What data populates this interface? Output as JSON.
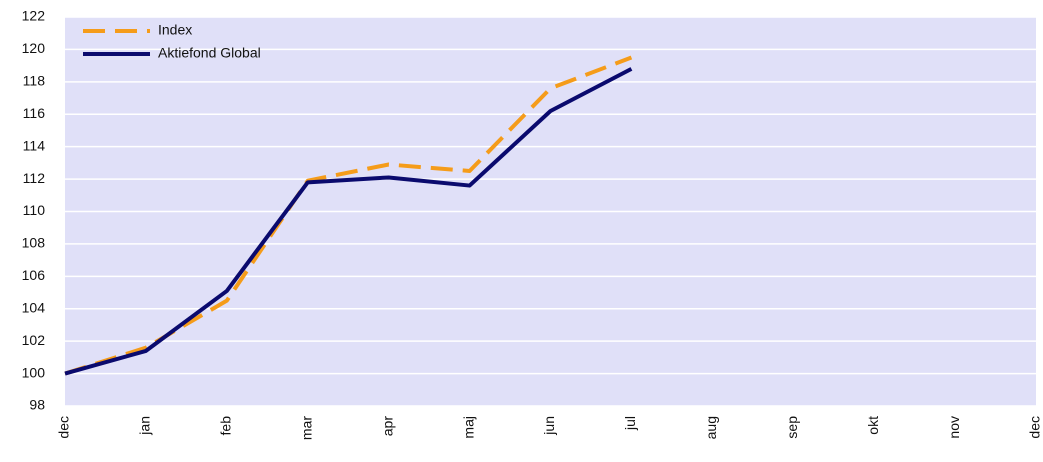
{
  "chart_data": {
    "type": "line",
    "categories": [
      "dec",
      "jan",
      "feb",
      "mar",
      "apr",
      "maj",
      "jun",
      "jul",
      "aug",
      "sep",
      "okt",
      "nov",
      "dec"
    ],
    "series": [
      {
        "name": "Index",
        "color": "#f59c1a",
        "dashed": true,
        "values": [
          100,
          101.6,
          104.5,
          111.9,
          112.9,
          112.5,
          117.6,
          119.5,
          null,
          null,
          null,
          null,
          null
        ]
      },
      {
        "name": "Aktiefond Global",
        "color": "#0a0a6e",
        "dashed": false,
        "values": [
          100,
          101.4,
          105.1,
          111.8,
          112.1,
          111.6,
          116.2,
          118.8,
          null,
          null,
          null,
          null,
          null
        ]
      }
    ],
    "ylim": [
      98,
      122
    ],
    "yticks": [
      98,
      100,
      102,
      104,
      106,
      108,
      110,
      112,
      114,
      116,
      118,
      120,
      122
    ],
    "grid": true,
    "legend": "top-left",
    "plot_background": "#e0e0f8"
  }
}
